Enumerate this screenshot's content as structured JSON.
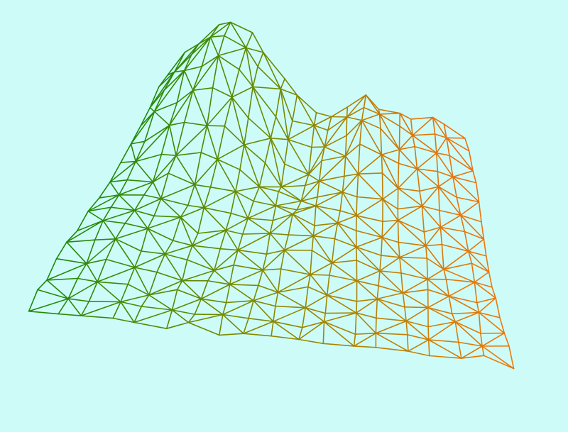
{
  "scene": {
    "background_color": "#cdfcf8",
    "colors": {
      "left_edge": "#1f8a0a",
      "center": "#7f8a00",
      "right_edge": "#ee7a0a",
      "back_right": "#ee6a14"
    },
    "mesh": {
      "type": "triangulated wireframe terrain surface",
      "rows": 14,
      "cols": 18
    }
  }
}
